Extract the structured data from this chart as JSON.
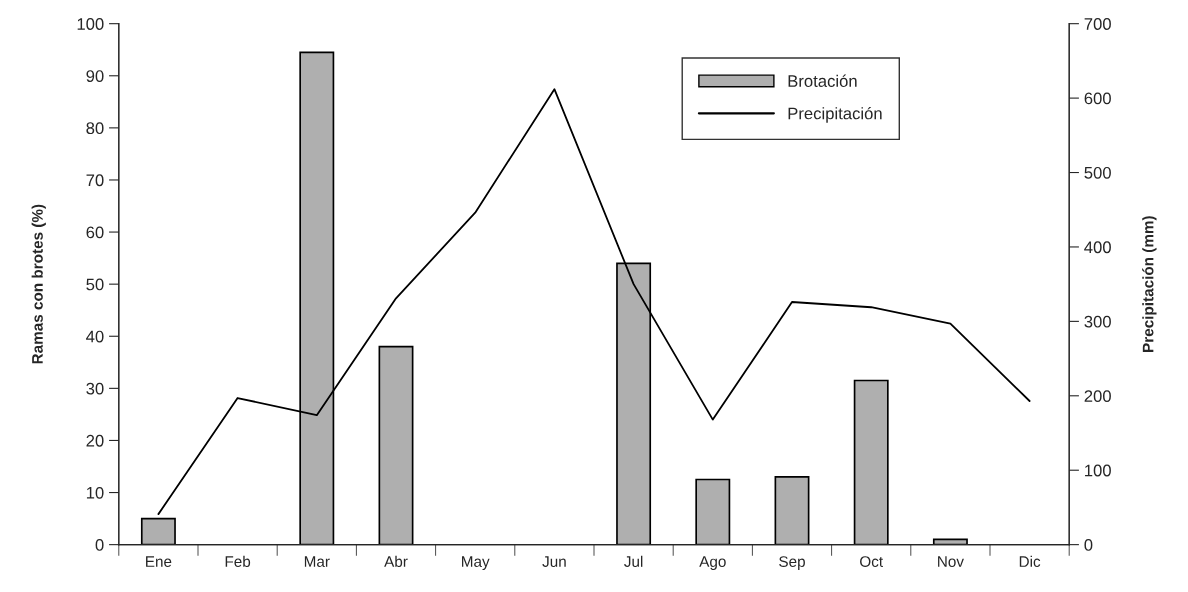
{
  "chart_data": {
    "type": "bar",
    "categories": [
      "Ene",
      "Feb",
      "Mar",
      "Abr",
      "May",
      "Jun",
      "Jul",
      "Ago",
      "Sep",
      "Oct",
      "Nov",
      "Dic"
    ],
    "series": [
      {
        "name": "Brotación",
        "color": "#afafaf",
        "values": [
          5,
          0,
          94.5,
          38,
          0,
          0,
          54,
          12.5,
          13,
          31.5,
          1,
          0
        ]
      },
      {
        "name": "Precipitación",
        "type": "line",
        "axis": "y2",
        "color": "#000000",
        "values": [
          41,
          197,
          174,
          331,
          446,
          612,
          350,
          168,
          326,
          319,
          297,
          193
        ]
      }
    ],
    "ylabel": "Ramas con brotes (%)",
    "y2label": "Precipitación (mm)",
    "ylim": [
      0,
      100
    ],
    "yticks": [
      0,
      10,
      20,
      30,
      40,
      50,
      60,
      70,
      80,
      90,
      100
    ],
    "y2lim": [
      0,
      700
    ],
    "y2ticks": [
      0,
      100,
      200,
      300,
      400,
      500,
      600,
      700
    ],
    "legend": "top right",
    "grid": false,
    "marker": "none",
    "line_style": "solid"
  }
}
